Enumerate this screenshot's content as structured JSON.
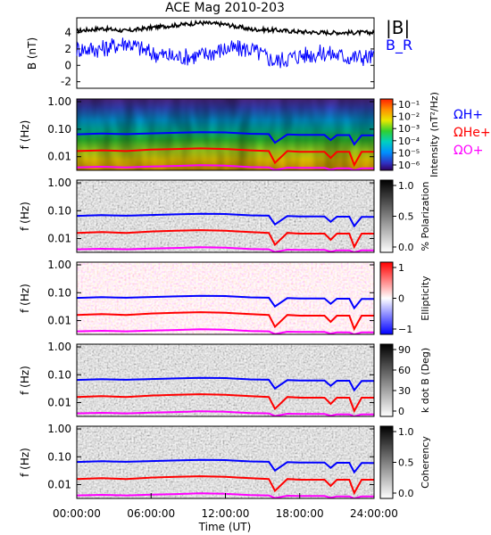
{
  "figure": {
    "title": "ACE Mag 2010-203",
    "xlabel": "Time (UT)",
    "x_tick_labels": [
      "00:00:00",
      "06:00:00",
      "12:00:00",
      "18:00:00",
      "24:00:00"
    ]
  },
  "colors": {
    "bmag": "#000000",
    "br": "#0000ff",
    "h_plus": "#0000ff",
    "he_plus": "#ff0000",
    "o_plus": "#ff00ff"
  },
  "chart_data": [
    {
      "type": "line",
      "panel": "b-field",
      "ylabel": "B (nT)",
      "ylim": [
        -2.8,
        5.8
      ],
      "y_tick_labels": [
        "4",
        "2",
        "0",
        "-2"
      ],
      "x_hours": [
        0,
        2,
        4,
        6,
        8,
        10,
        12,
        14,
        16,
        18,
        20,
        22,
        24
      ],
      "series": [
        {
          "name": "|B|",
          "values": [
            4.2,
            4.5,
            4.2,
            4.6,
            4.9,
            5.2,
            5.0,
            4.4,
            4.3,
            4.1,
            4.0,
            4.0,
            4.0
          ]
        },
        {
          "name": "B_R",
          "values": [
            2.0,
            2.0,
            2.8,
            1.5,
            1.0,
            1.2,
            2.0,
            2.0,
            0.5,
            1.2,
            1.5,
            1.0,
            1.0
          ]
        }
      ],
      "legend": [
        "|B|",
        "B_R"
      ]
    },
    {
      "type": "heatmap",
      "panel": "intensity",
      "ylabel": "f (Hz)",
      "y_tick_labels": [
        "1.00",
        "0.10",
        "0.01"
      ],
      "colorbar_label": "Intensity (nT²/Hz)",
      "colorbar_ticks": [
        "10⁻¹",
        "10⁻²",
        "10⁻³",
        "10⁻⁴",
        "10⁻⁵",
        "10⁻⁶"
      ],
      "legend": [
        "ΩH+",
        "ΩHe+",
        "ΩO+"
      ]
    },
    {
      "type": "heatmap",
      "panel": "polarization",
      "ylabel": "f (Hz)",
      "y_tick_labels": [
        "1.00",
        "0.10",
        "0.01"
      ],
      "colorbar_label": "% Polarization",
      "colorbar_ticks": [
        "1.0",
        "0.5",
        "0.0"
      ]
    },
    {
      "type": "heatmap",
      "panel": "ellipticity",
      "ylabel": "f (Hz)",
      "y_tick_labels": [
        "1.00",
        "0.10",
        "0.01"
      ],
      "colorbar_label": "Ellipticity",
      "colorbar_ticks": [
        "1",
        "0",
        "−1"
      ]
    },
    {
      "type": "heatmap",
      "panel": "k-dot-b",
      "ylabel": "f (Hz)",
      "y_tick_labels": [
        "1.00",
        "0.10",
        "0.01"
      ],
      "colorbar_label": "k dot B (Deg)",
      "colorbar_ticks": [
        "90",
        "60",
        "30",
        "0"
      ]
    },
    {
      "type": "heatmap",
      "panel": "coherency",
      "ylabel": "f (Hz)",
      "y_tick_labels": [
        "1.00",
        "0.10",
        "0.01"
      ],
      "colorbar_label": "Coherency",
      "colorbar_ticks": [
        "1.0",
        "0.5",
        "0.0"
      ]
    }
  ],
  "gyrofrequency_lines": {
    "x_hours": [
      0,
      2,
      4,
      6,
      8,
      10,
      12,
      14,
      15.5,
      16,
      17,
      18,
      20,
      20.5,
      21,
      22,
      22.4,
      23,
      24
    ],
    "h_plus_hz": [
      0.065,
      0.069,
      0.066,
      0.07,
      0.074,
      0.078,
      0.076,
      0.068,
      0.066,
      0.032,
      0.064,
      0.062,
      0.062,
      0.04,
      0.061,
      0.061,
      0.028,
      0.06,
      0.06
    ],
    "he_plus_hz": [
      0.016,
      0.017,
      0.016,
      0.018,
      0.019,
      0.02,
      0.019,
      0.017,
      0.016,
      0.006,
      0.016,
      0.015,
      0.015,
      0.009,
      0.015,
      0.015,
      0.005,
      0.015,
      0.015
    ],
    "o_plus_hz": [
      0.0041,
      0.0043,
      0.0041,
      0.0044,
      0.0046,
      0.0049,
      0.0047,
      0.0042,
      0.0041,
      0.0033,
      0.004,
      0.0039,
      0.0039,
      0.0034,
      0.0038,
      0.0038,
      0.0032,
      0.0038,
      0.0038
    ]
  }
}
